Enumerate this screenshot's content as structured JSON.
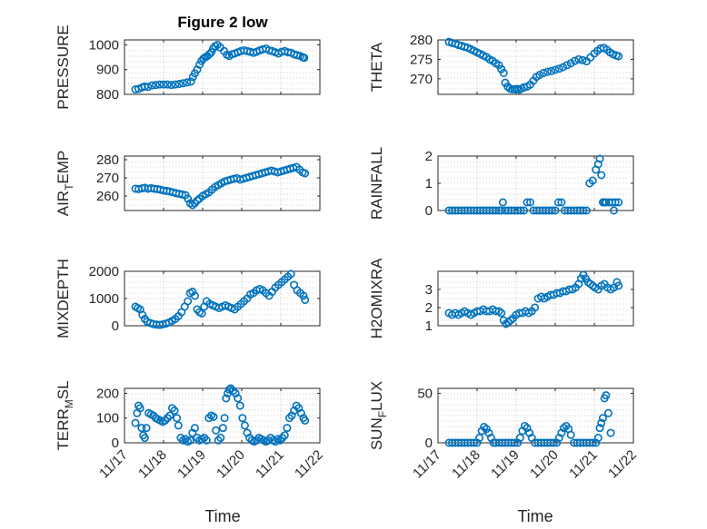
{
  "figure": {
    "title": "Figure 2 low",
    "x_ticks": [
      "11/17",
      "11/18",
      "11/19",
      "11/20",
      "11/21",
      "11/22"
    ],
    "x_label": "Time"
  },
  "chart_data": [
    {
      "type": "scatter",
      "ylabel": "PRESSURE",
      "ylim": [
        800,
        1020
      ],
      "yticks": [
        800,
        900,
        1000
      ],
      "xlim": [
        0,
        5
      ],
      "grid": true,
      "marker": "circle",
      "color": "#0072BD",
      "x": [
        0.28,
        0.36,
        0.45,
        0.52,
        0.6,
        0.7,
        0.8,
        0.9,
        1.0,
        1.1,
        1.2,
        1.3,
        1.4,
        1.5,
        1.6,
        1.7,
        1.75,
        1.8,
        1.86,
        1.92,
        1.97,
        2.02,
        2.07,
        2.12,
        2.17,
        2.22,
        2.27,
        2.32,
        2.38,
        2.45,
        2.55,
        2.62,
        2.68,
        2.75,
        2.82,
        2.9,
        2.98,
        3.06,
        3.14,
        3.22,
        3.3,
        3.38,
        3.46,
        3.54,
        3.62,
        3.7,
        3.78,
        3.86,
        3.94,
        4.02,
        4.1,
        4.18,
        4.26,
        4.34,
        4.42,
        4.5,
        4.56,
        4.6
      ],
      "y": [
        820,
        822,
        828,
        832,
        830,
        836,
        838,
        840,
        840,
        840,
        838,
        840,
        842,
        845,
        848,
        852,
        870,
        885,
        900,
        920,
        935,
        945,
        950,
        955,
        962,
        970,
        985,
        995,
        1000,
        990,
        975,
        960,
        955,
        962,
        965,
        970,
        975,
        978,
        975,
        972,
        968,
        972,
        978,
        982,
        985,
        978,
        975,
        970,
        965,
        972,
        975,
        970,
        968,
        962,
        958,
        955,
        950,
        948
      ]
    },
    {
      "type": "scatter",
      "ylabel": "THETA",
      "ylim": [
        266,
        280
      ],
      "yticks": [
        270,
        275,
        280
      ],
      "xlim": [
        0,
        5
      ],
      "grid": true,
      "marker": "circle",
      "color": "#0072BD",
      "x": [
        0.28,
        0.36,
        0.45,
        0.52,
        0.6,
        0.68,
        0.76,
        0.84,
        0.92,
        1.0,
        1.08,
        1.16,
        1.24,
        1.32,
        1.4,
        1.48,
        1.56,
        1.62,
        1.68,
        1.72,
        1.78,
        1.84,
        1.9,
        1.96,
        2.02,
        2.08,
        2.14,
        2.2,
        2.28,
        2.36,
        2.44,
        2.52,
        2.6,
        2.7,
        2.8,
        2.9,
        3.0,
        3.1,
        3.2,
        3.3,
        3.4,
        3.5,
        3.6,
        3.7,
        3.8,
        3.9,
        4.0,
        4.08,
        4.16,
        4.24,
        4.32,
        4.4,
        4.48,
        4.56,
        4.62
      ],
      "y": [
        279.5,
        279.2,
        279.0,
        278.7,
        278.5,
        278.2,
        278.0,
        277.6,
        277.2,
        276.8,
        276.4,
        276.0,
        275.6,
        275.0,
        274.6,
        274.0,
        273.5,
        272.5,
        271.5,
        269.0,
        268.0,
        267.5,
        267.3,
        267.3,
        267.4,
        267.2,
        267.5,
        267.8,
        268.0,
        268.5,
        269.5,
        270.5,
        271.0,
        271.5,
        271.8,
        272.0,
        272.3,
        272.6,
        273.0,
        273.5,
        274.0,
        274.6,
        275.0,
        274.8,
        274.5,
        275.5,
        276.5,
        277.2,
        277.8,
        278.0,
        277.5,
        276.8,
        276.3,
        276.0,
        275.8
      ]
    },
    {
      "type": "scatter",
      "ylabel": "AIR_TEMP",
      "ylim": [
        252,
        282
      ],
      "yticks": [
        260,
        270,
        280
      ],
      "xlim": [
        0,
        5
      ],
      "grid": true,
      "marker": "circle",
      "color": "#0072BD",
      "x": [
        0.28,
        0.36,
        0.45,
        0.52,
        0.6,
        0.68,
        0.76,
        0.84,
        0.92,
        1.0,
        1.08,
        1.16,
        1.24,
        1.32,
        1.4,
        1.48,
        1.56,
        1.62,
        1.68,
        1.74,
        1.8,
        1.86,
        1.92,
        2.0,
        2.08,
        2.16,
        2.24,
        2.32,
        2.4,
        2.48,
        2.56,
        2.64,
        2.72,
        2.8,
        2.88,
        2.96,
        3.04,
        3.12,
        3.2,
        3.28,
        3.36,
        3.44,
        3.52,
        3.6,
        3.68,
        3.76,
        3.84,
        3.92,
        4.0,
        4.08,
        4.16,
        4.24,
        4.32,
        4.4,
        4.48,
        4.56,
        4.62
      ],
      "y": [
        264.0,
        263.8,
        264.2,
        264.5,
        264.0,
        264.3,
        264.0,
        263.8,
        263.5,
        263.0,
        262.8,
        262.5,
        262.0,
        261.5,
        261.2,
        260.8,
        260.5,
        258.5,
        256.0,
        255.0,
        256.0,
        257.5,
        258.5,
        260.0,
        261.0,
        262.0,
        263.5,
        265.0,
        266.0,
        267.0,
        268.0,
        268.5,
        269.0,
        269.5,
        269.8,
        269.0,
        269.5,
        270.0,
        270.5,
        271.0,
        271.5,
        272.0,
        272.5,
        273.0,
        273.5,
        274.0,
        273.5,
        273.0,
        273.5,
        274.0,
        274.5,
        275.0,
        275.5,
        276.0,
        274.5,
        273.0,
        272.5
      ]
    },
    {
      "type": "scatter",
      "ylabel": "RAINFALL",
      "ylim": [
        0,
        2
      ],
      "yticks": [
        0,
        1,
        2
      ],
      "xlim": [
        0,
        5
      ],
      "grid": true,
      "marker": "circle",
      "color": "#0072BD",
      "x": [
        0.28,
        0.36,
        0.44,
        0.52,
        0.6,
        0.68,
        0.76,
        0.84,
        0.92,
        1.0,
        1.08,
        1.16,
        1.24,
        1.32,
        1.4,
        1.48,
        1.56,
        1.62,
        1.66,
        1.72,
        1.8,
        1.88,
        1.96,
        2.04,
        2.12,
        2.2,
        2.28,
        2.36,
        2.44,
        2.52,
        2.6,
        2.68,
        2.76,
        2.84,
        2.92,
        3.0,
        3.08,
        3.16,
        3.24,
        3.32,
        3.4,
        3.48,
        3.56,
        3.64,
        3.72,
        3.8,
        3.88,
        3.96,
        4.04,
        4.1,
        4.14,
        4.18,
        4.22,
        4.26,
        4.3,
        4.38,
        4.46,
        4.54,
        4.62,
        4.5
      ],
      "y": [
        0,
        0,
        0,
        0,
        0,
        0,
        0,
        0,
        0,
        0,
        0,
        0,
        0,
        0,
        0,
        0,
        0,
        0,
        0.3,
        0,
        0,
        0,
        0,
        0,
        0,
        0,
        0.3,
        0.3,
        0,
        0,
        0,
        0,
        0,
        0,
        0,
        0,
        0.3,
        0.3,
        0,
        0,
        0,
        0,
        0,
        0,
        0,
        0,
        1.0,
        1.1,
        1.5,
        1.7,
        1.9,
        1.3,
        0.3,
        0.3,
        0.3,
        0.3,
        0.3,
        0.3,
        0.3,
        0
      ]
    },
    {
      "type": "scatter",
      "ylabel": "MIXDEPTH",
      "ylim": [
        0,
        2000
      ],
      "yticks": [
        0,
        1000,
        2000
      ],
      "xlim": [
        0,
        5
      ],
      "grid": true,
      "marker": "circle",
      "color": "#0072BD",
      "x": [
        0.28,
        0.34,
        0.4,
        0.46,
        0.52,
        0.58,
        0.66,
        0.74,
        0.82,
        0.9,
        0.98,
        1.06,
        1.14,
        1.22,
        1.3,
        1.38,
        1.46,
        1.54,
        1.62,
        1.68,
        1.74,
        1.8,
        1.86,
        1.92,
        1.98,
        2.04,
        2.1,
        2.18,
        2.26,
        2.34,
        2.42,
        2.5,
        2.58,
        2.66,
        2.74,
        2.82,
        2.9,
        2.98,
        3.06,
        3.14,
        3.22,
        3.3,
        3.38,
        3.46,
        3.54,
        3.62,
        3.7,
        3.78,
        3.86,
        3.94,
        4.02,
        4.1,
        4.18,
        4.26,
        4.34,
        4.42,
        4.5,
        4.58,
        4.62
      ],
      "y": [
        700,
        650,
        600,
        400,
        250,
        150,
        100,
        60,
        40,
        30,
        50,
        80,
        120,
        180,
        250,
        350,
        500,
        700,
        900,
        1200,
        1250,
        1100,
        600,
        500,
        450,
        700,
        900,
        800,
        750,
        700,
        650,
        700,
        750,
        700,
        650,
        600,
        700,
        800,
        900,
        1000,
        1150,
        1200,
        1300,
        1350,
        1300,
        1200,
        1100,
        1250,
        1400,
        1500,
        1600,
        1700,
        1800,
        1900,
        1500,
        1300,
        1200,
        1100,
        950
      ]
    },
    {
      "type": "scatter",
      "ylabel": "H2OMIXRA",
      "ylim": [
        1,
        4
      ],
      "yticks": [
        1,
        2,
        3
      ],
      "xlim": [
        0,
        5
      ],
      "grid": true,
      "marker": "circle",
      "color": "#0072BD",
      "x": [
        0.28,
        0.36,
        0.44,
        0.52,
        0.6,
        0.68,
        0.76,
        0.84,
        0.92,
        1.0,
        1.08,
        1.16,
        1.24,
        1.32,
        1.4,
        1.48,
        1.56,
        1.62,
        1.68,
        1.74,
        1.8,
        1.86,
        1.92,
        2.0,
        2.08,
        2.16,
        2.24,
        2.32,
        2.4,
        2.48,
        2.56,
        2.64,
        2.72,
        2.8,
        2.88,
        2.96,
        3.04,
        3.12,
        3.2,
        3.28,
        3.36,
        3.44,
        3.52,
        3.6,
        3.66,
        3.72,
        3.78,
        3.84,
        3.9,
        3.96,
        4.02,
        4.1,
        4.18,
        4.26,
        4.34,
        4.42,
        4.5,
        4.58,
        4.62
      ],
      "y": [
        1.7,
        1.6,
        1.7,
        1.6,
        1.7,
        1.8,
        1.7,
        1.6,
        1.7,
        1.8,
        1.8,
        1.9,
        1.8,
        1.8,
        1.9,
        1.8,
        1.8,
        1.7,
        1.3,
        1.1,
        1.2,
        1.3,
        1.4,
        1.6,
        1.7,
        1.7,
        1.8,
        1.7,
        1.8,
        2.0,
        2.5,
        2.6,
        2.5,
        2.6,
        2.7,
        2.7,
        2.8,
        2.8,
        2.9,
        2.9,
        3.0,
        3.0,
        3.1,
        3.3,
        3.6,
        3.8,
        3.6,
        3.4,
        3.3,
        3.2,
        3.1,
        3.0,
        3.2,
        3.3,
        3.1,
        3.0,
        3.1,
        3.4,
        3.2
      ]
    },
    {
      "type": "scatter",
      "ylabel": "TERR_MSL",
      "ylim": [
        0,
        220
      ],
      "yticks": [
        0,
        100,
        200
      ],
      "xlim": [
        0,
        5
      ],
      "grid": true,
      "marker": "circle",
      "color": "#0072BD",
      "x": [
        0.28,
        0.32,
        0.36,
        0.4,
        0.44,
        0.48,
        0.52,
        0.56,
        0.62,
        0.68,
        0.74,
        0.8,
        0.86,
        0.92,
        0.98,
        1.04,
        1.1,
        1.16,
        1.22,
        1.28,
        1.34,
        1.38,
        1.44,
        1.5,
        1.56,
        1.62,
        1.68,
        1.74,
        1.8,
        1.86,
        1.92,
        1.98,
        2.04,
        2.1,
        2.16,
        2.22,
        2.28,
        2.34,
        2.4,
        2.46,
        2.52,
        2.56,
        2.6,
        2.64,
        2.68,
        2.72,
        2.78,
        2.84,
        2.9,
        2.96,
        3.02,
        3.08,
        3.14,
        3.2,
        3.26,
        3.32,
        3.38,
        3.44,
        3.5,
        3.56,
        3.62,
        3.68,
        3.74,
        3.8,
        3.86,
        3.92,
        3.98,
        4.04,
        4.1,
        4.16,
        4.22,
        4.28,
        4.34,
        4.4,
        4.46,
        4.52,
        4.58,
        4.62
      ],
      "y": [
        80,
        120,
        150,
        140,
        60,
        30,
        20,
        60,
        120,
        115,
        110,
        100,
        95,
        90,
        85,
        90,
        100,
        110,
        140,
        130,
        100,
        70,
        20,
        10,
        15,
        5,
        10,
        40,
        60,
        20,
        10,
        15,
        20,
        10,
        100,
        110,
        105,
        50,
        10,
        20,
        60,
        100,
        180,
        200,
        215,
        220,
        210,
        200,
        180,
        150,
        100,
        70,
        40,
        20,
        10,
        5,
        10,
        20,
        15,
        10,
        5,
        10,
        20,
        10,
        5,
        15,
        10,
        20,
        30,
        60,
        100,
        110,
        130,
        150,
        140,
        120,
        100,
        90
      ]
    },
    {
      "type": "scatter",
      "ylabel": "SUN_FLUX",
      "ylim": [
        0,
        55
      ],
      "yticks": [
        0,
        50
      ],
      "xlim": [
        0,
        5
      ],
      "grid": true,
      "marker": "circle",
      "color": "#0072BD",
      "x": [
        0.28,
        0.36,
        0.44,
        0.52,
        0.6,
        0.68,
        0.76,
        0.84,
        0.92,
        1.0,
        1.06,
        1.12,
        1.18,
        1.24,
        1.3,
        1.36,
        1.42,
        1.48,
        1.56,
        1.64,
        1.72,
        1.8,
        1.88,
        1.96,
        2.04,
        2.1,
        2.16,
        2.22,
        2.28,
        2.34,
        2.4,
        2.48,
        2.56,
        2.64,
        2.72,
        2.8,
        2.88,
        2.96,
        3.04,
        3.1,
        3.16,
        3.22,
        3.28,
        3.34,
        3.4,
        3.48,
        3.56,
        3.64,
        3.72,
        3.8,
        3.88,
        3.96,
        4.04,
        4.1,
        4.14,
        4.18,
        4.22,
        4.26,
        4.3,
        4.36,
        4.42
      ],
      "y": [
        0,
        0,
        0,
        0,
        0,
        0,
        0,
        0,
        0,
        0,
        5,
        12,
        16,
        14,
        10,
        5,
        0,
        0,
        0,
        0,
        0,
        0,
        0,
        0,
        0,
        5,
        12,
        17,
        15,
        10,
        5,
        0,
        0,
        0,
        0,
        0,
        0,
        0,
        0,
        5,
        10,
        15,
        17,
        14,
        8,
        0,
        0,
        0,
        0,
        0,
        0,
        0,
        0,
        5,
        15,
        20,
        25,
        45,
        48,
        30,
        10
      ]
    }
  ]
}
